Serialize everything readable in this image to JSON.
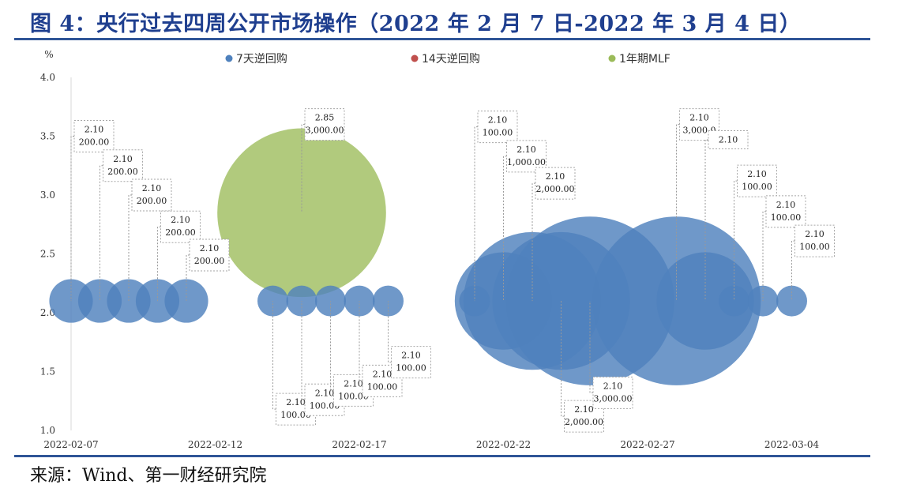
{
  "title": "图 4：央行过去四周公开市场操作（2022 年 2 月 7 日-2022 年 3 月 4 日）",
  "source": "来源：Wind、第一财经研究院",
  "colors": {
    "rule": "#2f5597",
    "title": "#1f3f8f"
  },
  "chart_data": {
    "type": "bubble",
    "ylabel": "%",
    "ylim": [
      1.0,
      4.0
    ],
    "yticks": [
      "1.0",
      "1.5",
      "2.0",
      "2.5",
      "3.0",
      "3.5",
      "4.0"
    ],
    "xticks": [
      "2022-02-07",
      "2022-02-12",
      "2022-02-17",
      "2022-02-22",
      "2022-02-27",
      "2022-03-04"
    ],
    "legend_position": "top",
    "grid": false,
    "series": [
      {
        "name": "7天逆回购",
        "color": "#4f81bd",
        "points": [
          {
            "x": "2022-02-07",
            "y": 2.1,
            "size": 200.0,
            "label": [
              "2.10",
              "200.00"
            ],
            "label_pos": "above",
            "label_y": 3.5
          },
          {
            "x": "2022-02-08",
            "y": 2.1,
            "size": 200.0,
            "label": [
              "2.10",
              "200.00"
            ],
            "label_pos": "above",
            "label_y": 3.25
          },
          {
            "x": "2022-02-09",
            "y": 2.1,
            "size": 200.0,
            "label": [
              "2.10",
              "200.00"
            ],
            "label_pos": "above",
            "label_y": 3.0
          },
          {
            "x": "2022-02-10",
            "y": 2.1,
            "size": 200.0,
            "label": [
              "2.10",
              "200.00"
            ],
            "label_pos": "above",
            "label_y": 2.73
          },
          {
            "x": "2022-02-11",
            "y": 2.1,
            "size": 200.0,
            "label": [
              "2.10",
              "200.00"
            ],
            "label_pos": "above",
            "label_y": 2.49
          },
          {
            "x": "2022-02-14",
            "y": 2.1,
            "size": 100.0,
            "label": [
              "2.10",
              "100.00"
            ],
            "label_pos": "below",
            "label_y": 1.18
          },
          {
            "x": "2022-02-15",
            "y": 2.1,
            "size": 100.0,
            "label": [
              "2.10",
              "100.00"
            ],
            "label_pos": "below",
            "label_y": 1.26
          },
          {
            "x": "2022-02-16",
            "y": 2.1,
            "size": 100.0,
            "label": [
              "2.10",
              "100.00"
            ],
            "label_pos": "below",
            "label_y": 1.34
          },
          {
            "x": "2022-02-17",
            "y": 2.1,
            "size": 100.0,
            "label": [
              "2.10",
              "100.00"
            ],
            "label_pos": "below",
            "label_y": 1.42
          },
          {
            "x": "2022-02-18",
            "y": 2.1,
            "size": 100.0,
            "label": [
              "2.10",
              "100.00"
            ],
            "label_pos": "below",
            "label_y": 1.58
          },
          {
            "x": "2022-02-21",
            "y": 2.1,
            "size": 100.0,
            "label": [
              "2.10",
              "100.00"
            ],
            "label_pos": "above",
            "label_y": 3.58
          },
          {
            "x": "2022-02-22",
            "y": 2.1,
            "size": 1000.0,
            "label": [
              "2.10",
              "1,000.00"
            ],
            "label_pos": "above",
            "label_y": 3.33
          },
          {
            "x": "2022-02-23",
            "y": 2.1,
            "size": 2000.0,
            "label": [
              "2.10",
              "2,000.00"
            ],
            "label_pos": "above",
            "label_y": 3.1
          },
          {
            "x": "2022-02-24",
            "y": 2.1,
            "size": 2000.0,
            "label": [
              "2.10",
              "2,000.00"
            ],
            "label_pos": "below",
            "label_y": 1.12
          },
          {
            "x": "2022-02-25",
            "y": 2.1,
            "size": 3000.0,
            "label": [
              "2.10",
              "3,000.00"
            ],
            "label_pos": "below",
            "label_y": 1.32
          },
          {
            "x": "2022-02-28",
            "y": 2.1,
            "size": 3000.0,
            "label": [
              "2.10",
              "3,000.0"
            ],
            "label_pos": "above",
            "label_y": 3.6
          },
          {
            "x": "2022-03-01",
            "y": 2.1,
            "size": 1000.0,
            "label": [
              "2.10"
            ],
            "label_pos": "above",
            "label_y": 3.47
          },
          {
            "x": "2022-03-02",
            "y": 2.1,
            "size": 100.0,
            "label": [
              "2.10",
              "100.00"
            ],
            "label_pos": "above",
            "label_y": 3.12
          },
          {
            "x": "2022-03-03",
            "y": 2.1,
            "size": 100.0,
            "label": [
              "2.10",
              "100.00"
            ],
            "label_pos": "above",
            "label_y": 2.86
          },
          {
            "x": "2022-03-04",
            "y": 2.1,
            "size": 100.0,
            "label": [
              "2.10",
              "100.00"
            ],
            "label_pos": "above",
            "label_y": 2.61
          }
        ]
      },
      {
        "name": "14天逆回购",
        "color": "#c0504d",
        "points": []
      },
      {
        "name": "1年期MLF",
        "color": "#9bbb59",
        "points": [
          {
            "x": "2022-02-15",
            "y": 2.85,
            "size": 3000.0,
            "label": [
              "2.85",
              "3,000.00"
            ],
            "label_pos": "above",
            "label_y": 3.6
          }
        ]
      }
    ]
  }
}
